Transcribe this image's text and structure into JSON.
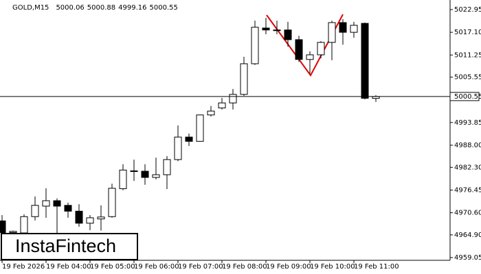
{
  "chart_data": {
    "type": "candlestick",
    "header": {
      "symbol": "GOLD,M15",
      "ohlc": [
        5000.06,
        5000.88,
        4999.16,
        5000.55
      ]
    },
    "watermark": "InstaFintech",
    "current_price": 5000.55,
    "categories": [
      "19 Feb 2026",
      null,
      null,
      null,
      "19 Feb 04:00",
      null,
      null,
      null,
      "19 Feb 05:00",
      null,
      null,
      null,
      "19 Feb 06:00",
      null,
      null,
      null,
      "19 Feb 07:00",
      null,
      null,
      null,
      "19 Feb 08:00",
      null,
      null,
      null,
      "19 Feb 09:00",
      null,
      null,
      null,
      "19 Feb 10:00",
      null,
      null,
      null,
      "19 Feb 11:00",
      null,
      null
    ],
    "open": [
      4968.5,
      4965.5,
      4965.4,
      4969.6,
      4972.3,
      4973.7,
      4972.5,
      4971.0,
      4967.9,
      4969.0,
      4969.6,
      4976.8,
      4981.3,
      4981.3,
      4979.7,
      4980.4,
      4984.3,
      4990.1,
      4989.0,
      4995.8,
      4997.6,
      4998.9,
      5001.1,
      5009.0,
      5018.2,
      5017.7,
      5017.7,
      5015.2,
      5010.1,
      5011.3,
      5014.5,
      5019.6,
      5017.1,
      5019.4,
      5000.06
    ],
    "high": [
      4970.0,
      4966.0,
      4970.2,
      4974.8,
      4976.9,
      4974.3,
      4973.2,
      4972.8,
      4970.0,
      4972.5,
      4978.1,
      4983.1,
      4984.3,
      4983.1,
      4984.8,
      4985.2,
      4993.1,
      4991.0,
      4995.9,
      4998.1,
      5000.2,
      5002.5,
      5010.8,
      5020.1,
      5020.8,
      5020.1,
      5019.8,
      5016.2,
      5012.2,
      5014.8,
      5020.1,
      5020.5,
      5019.8,
      5019.6,
      5000.88
    ],
    "low": [
      4965.0,
      4965.0,
      4965.0,
      4968.6,
      4969.3,
      4965.0,
      4969.3,
      4967.0,
      4966.1,
      4966.0,
      4969.3,
      4976.4,
      4978.8,
      4977.8,
      4979.2,
      4976.7,
      4983.9,
      4987.8,
      4988.9,
      4995.4,
      4997.2,
      4997.2,
      5000.7,
      5008.7,
      5016.6,
      5016.6,
      5013.4,
      5009.5,
      5006.4,
      5010.4,
      5009.9,
      5013.9,
      5015.7,
      4999.8,
      4999.16
    ],
    "close": [
      4965.5,
      4965.8,
      4969.6,
      4972.5,
      4973.7,
      4972.3,
      4971.0,
      4967.9,
      4969.3,
      4969.5,
      4976.9,
      4981.6,
      4981.4,
      4979.7,
      4980.4,
      4984.3,
      4990.1,
      4989.0,
      4995.8,
      4996.8,
      4998.9,
      5001.1,
      5009.0,
      5018.4,
      5017.7,
      5017.6,
      5015.2,
      5010.1,
      5011.3,
      5014.5,
      5019.6,
      5017.1,
      5018.9,
      5000.1,
      5000.55
    ],
    "ylim": [
      4959.05,
      5022.95
    ],
    "yticks": [
      5022.95,
      {
        "value": 5017.1,
        "label": "5017.10"
      },
      5011.25,
      5005.55,
      4993.85,
      {
        "value": 4988.0,
        "label": "4988.00"
      },
      {
        "value": 4982.3,
        "label": "4982.30"
      },
      4976.45,
      {
        "value": 4970.6,
        "label": "4970.60"
      },
      {
        "value": 4964.9,
        "label": "4964.90"
      },
      4959.05
    ],
    "bull_color": "#ffffff",
    "bear_color": "#000000",
    "pattern_color": "#e00000"
  }
}
